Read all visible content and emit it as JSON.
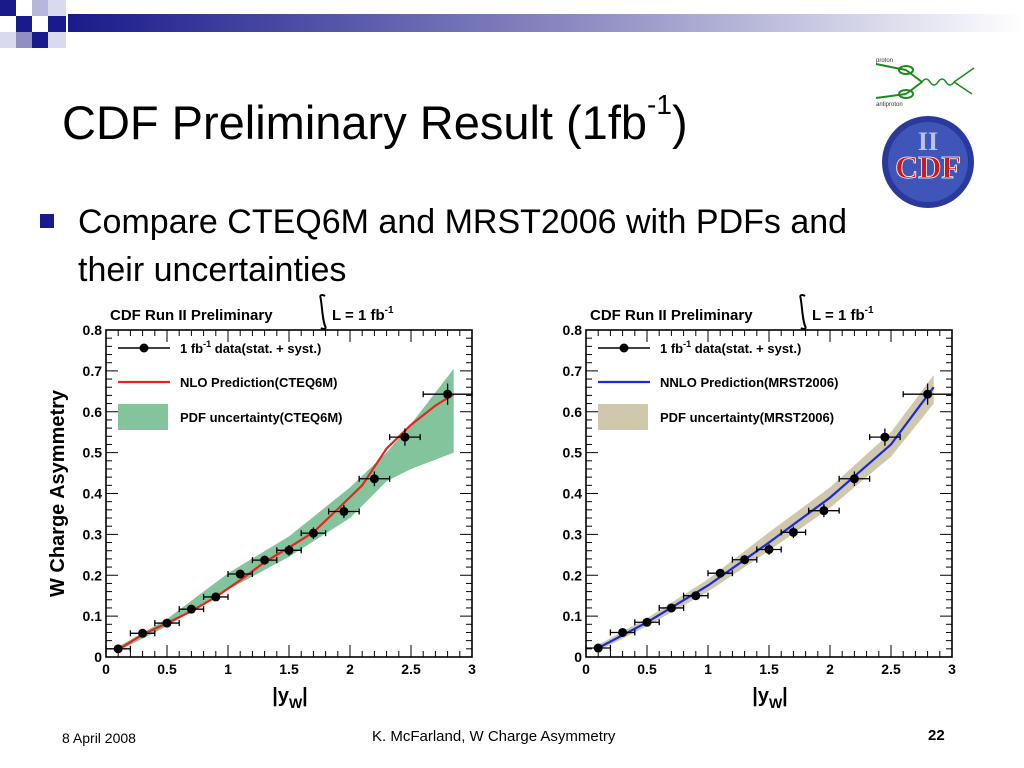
{
  "slide": {
    "title_main": "CDF Preliminary Result (1fb",
    "title_sup": "-1",
    "title_end": ")",
    "bullet": "Compare CTEQ6M and MRST2006 with PDFs and their uncertainties"
  },
  "footer": {
    "date": "8 April 2008",
    "center": "K. McFarland, W Charge Asymmetry",
    "page": "22"
  },
  "colors": {
    "title_bar": "#1a1a8c",
    "bullet": "#1a1a8c",
    "cteq_line": "#e8241a",
    "cteq_band": "#84c49c",
    "mrst_line": "#1a2ad6",
    "mrst_band": "#cfc8ac",
    "logo_blue": "#2a3a9c",
    "logo_red": "#d01818"
  },
  "logo": {
    "text": "CDF",
    "roman": "II",
    "diagram_labels": [
      "proton",
      "antiproton"
    ]
  },
  "chart_data": [
    {
      "type": "line",
      "header": "CDF Run II Preliminary",
      "lumi": "L = 1 fb",
      "lumi_sup": "-1",
      "xlabel_main": "|y",
      "xlabel_sub": "W",
      "xlabel_end": "|",
      "ylabel": "W Charge Asymmetry",
      "xlim": [
        0,
        3
      ],
      "ylim": [
        0,
        0.8
      ],
      "xticks": [
        "0",
        "0.5",
        "1",
        "1.5",
        "2",
        "2.5",
        "3"
      ],
      "yticks": [
        "0",
        "0.1",
        "0.2",
        "0.3",
        "0.4",
        "0.5",
        "0.6",
        "0.7",
        "0.8"
      ],
      "legend": {
        "data_main": "1 fb",
        "data_sup": "-1",
        "data_rest": " data(stat. + syst.)",
        "prediction": "NLO Prediction(CTEQ6M)",
        "band": "PDF uncertainty(CTEQ6M)"
      },
      "line_color": "#e8241a",
      "band_color": "#84c49c",
      "data": {
        "x": [
          0.1,
          0.3,
          0.5,
          0.7,
          0.9,
          1.1,
          1.3,
          1.5,
          1.7,
          1.95,
          2.2,
          2.45,
          2.8
        ],
        "xerr": [
          0.1,
          0.1,
          0.1,
          0.1,
          0.1,
          0.1,
          0.1,
          0.1,
          0.1,
          0.125,
          0.125,
          0.125,
          0.2
        ],
        "y": [
          0.02,
          0.058,
          0.083,
          0.117,
          0.147,
          0.203,
          0.237,
          0.261,
          0.303,
          0.356,
          0.436,
          0.538,
          0.643
        ],
        "yerr": [
          0.006,
          0.007,
          0.007,
          0.008,
          0.008,
          0.01,
          0.011,
          0.013,
          0.014,
          0.016,
          0.018,
          0.021,
          0.026
        ]
      },
      "prediction": {
        "x": [
          0.1,
          0.3,
          0.5,
          0.7,
          0.9,
          1.1,
          1.3,
          1.5,
          1.7,
          1.9,
          2.1,
          2.3,
          2.5,
          2.7,
          2.85
        ],
        "y": [
          0.018,
          0.055,
          0.083,
          0.112,
          0.147,
          0.188,
          0.232,
          0.268,
          0.305,
          0.362,
          0.42,
          0.51,
          0.568,
          0.615,
          0.643
        ]
      },
      "band": {
        "x": [
          0.1,
          0.5,
          1.0,
          1.5,
          2.0,
          2.3,
          2.5,
          2.85
        ],
        "low": [
          0.015,
          0.075,
          0.165,
          0.245,
          0.34,
          0.43,
          0.46,
          0.5
        ],
        "high": [
          0.025,
          0.093,
          0.205,
          0.295,
          0.415,
          0.5,
          0.57,
          0.705
        ]
      }
    },
    {
      "type": "line",
      "header": "CDF Run II Preliminary",
      "lumi": "L = 1 fb",
      "lumi_sup": "-1",
      "xlabel_main": "|y",
      "xlabel_sub": "W",
      "xlabel_end": "|",
      "ylabel": "",
      "xlim": [
        0,
        3
      ],
      "ylim": [
        0,
        0.8
      ],
      "xticks": [
        "0",
        "0.5",
        "1",
        "1.5",
        "2",
        "2.5",
        "3"
      ],
      "yticks": [
        "0",
        "0.1",
        "0.2",
        "0.3",
        "0.4",
        "0.5",
        "0.6",
        "0.7",
        "0.8"
      ],
      "legend": {
        "data_main": "1 fb",
        "data_sup": "-1",
        "data_rest": " data(stat. + syst.)",
        "prediction": "NNLO Prediction(MRST2006)",
        "band": "PDF uncertainty(MRST2006)"
      },
      "line_color": "#1a2ad6",
      "band_color": "#cfc8ac",
      "data": {
        "x": [
          0.1,
          0.3,
          0.5,
          0.7,
          0.9,
          1.1,
          1.3,
          1.5,
          1.7,
          1.95,
          2.2,
          2.45,
          2.8
        ],
        "xerr": [
          0.1,
          0.1,
          0.1,
          0.1,
          0.1,
          0.1,
          0.1,
          0.1,
          0.1,
          0.125,
          0.125,
          0.125,
          0.2
        ],
        "y": [
          0.022,
          0.06,
          0.085,
          0.12,
          0.15,
          0.205,
          0.238,
          0.263,
          0.305,
          0.358,
          0.436,
          0.538,
          0.643
        ],
        "yerr": [
          0.006,
          0.007,
          0.007,
          0.008,
          0.008,
          0.01,
          0.011,
          0.013,
          0.014,
          0.016,
          0.018,
          0.021,
          0.026
        ]
      },
      "prediction": {
        "x": [
          0.1,
          0.5,
          1.0,
          1.5,
          2.0,
          2.5,
          2.85
        ],
        "y": [
          0.022,
          0.085,
          0.175,
          0.28,
          0.39,
          0.52,
          0.66
        ]
      },
      "band": {
        "x": [
          0.1,
          0.5,
          1.0,
          1.5,
          2.0,
          2.5,
          2.85
        ],
        "low": [
          0.015,
          0.075,
          0.16,
          0.26,
          0.365,
          0.49,
          0.62
        ],
        "high": [
          0.03,
          0.095,
          0.19,
          0.305,
          0.415,
          0.55,
          0.69
        ]
      }
    }
  ]
}
